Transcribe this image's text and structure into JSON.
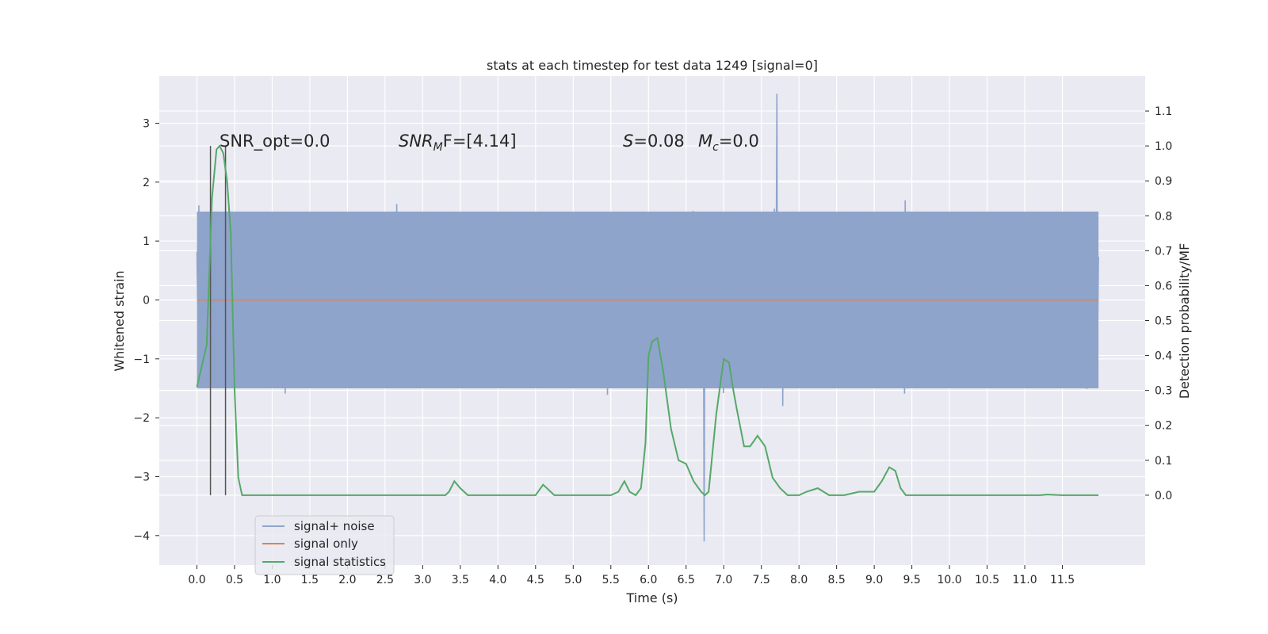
{
  "chart_data": {
    "type": "line",
    "title": "stats at each timestep for test data 1249 [signal=0]",
    "xlabel": "Time (s)",
    "ylabel": "Whitened strain",
    "ylabel_right": "Detection probability/MF",
    "xlim": [
      -0.5,
      12.6
    ],
    "ylim": [
      -4.5,
      3.8
    ],
    "ylim_right": [
      -0.2,
      1.2
    ],
    "x_ticks": [
      "0.0",
      "0.5",
      "1.0",
      "1.5",
      "2.0",
      "2.5",
      "3.0",
      "3.5",
      "4.0",
      "4.5",
      "5.0",
      "5.5",
      "6.0",
      "6.5",
      "7.0",
      "7.5",
      "8.0",
      "8.5",
      "9.0",
      "9.5",
      "10.0",
      "10.5",
      "11.0",
      "11.5"
    ],
    "y_ticks": [
      "3",
      "2",
      "1",
      "0",
      "−1",
      "−2",
      "−3",
      "−4"
    ],
    "y_ticks_right": [
      "1.1",
      "1.0",
      "0.9",
      "0.8",
      "0.7",
      "0.6",
      "0.5",
      "0.4",
      "0.3",
      "0.2",
      "0.1",
      "0.0"
    ],
    "grid": true,
    "annotations": {
      "snr_opt": "SNR_opt=0.0",
      "snr_mf_sym": "SNR",
      "snr_mf_sub": "M",
      "snr_mf_rest": "F=[4.14]",
      "s_sym": "S",
      "s_rest": "=0.08",
      "mc_sym": "M",
      "mc_sub": "c",
      "mc_rest": "=0.0"
    },
    "vlines_x": [
      0.18,
      0.38
    ],
    "noise": {
      "x_range": [
        0.0,
        11.98
      ],
      "band": [
        -1.5,
        1.5
      ],
      "extreme_high": 3.5,
      "extreme_low": -4.1
    },
    "series": [
      {
        "name": "signal+ noise",
        "color": "#8fa4cb",
        "axis": "left"
      },
      {
        "name": "signal only",
        "color": "#dd8452",
        "axis": "left",
        "x": [
          0.0,
          11.98
        ],
        "y": [
          0.0,
          0.0
        ]
      },
      {
        "name": "signal statistics",
        "color": "#55a868",
        "axis": "right",
        "x": [
          0.0,
          0.13,
          0.2,
          0.26,
          0.3,
          0.35,
          0.4,
          0.45,
          0.5,
          0.55,
          0.6,
          3.3,
          3.35,
          3.42,
          3.5,
          3.6,
          3.8,
          4.5,
          4.6,
          4.65,
          4.75,
          5.0,
          5.5,
          5.6,
          5.68,
          5.75,
          5.83,
          5.9,
          5.96,
          6.0,
          6.05,
          6.12,
          6.2,
          6.3,
          6.4,
          6.5,
          6.6,
          6.7,
          6.75,
          6.8,
          6.9,
          7.0,
          7.07,
          7.12,
          7.17,
          7.27,
          7.35,
          7.45,
          7.55,
          7.65,
          7.75,
          7.85,
          8.0,
          8.1,
          8.25,
          8.4,
          8.6,
          8.8,
          9.0,
          9.1,
          9.2,
          9.28,
          9.35,
          9.42,
          9.5,
          9.6,
          9.8,
          11.2,
          11.3,
          11.5,
          11.7,
          11.98
        ],
        "y": [
          0.31,
          0.43,
          0.85,
          0.99,
          1.0,
          0.98,
          0.9,
          0.75,
          0.3,
          0.05,
          0.0,
          0.0,
          0.01,
          0.04,
          0.02,
          0.0,
          0.0,
          0.0,
          0.03,
          0.02,
          0.0,
          0.0,
          0.0,
          0.01,
          0.04,
          0.01,
          0.0,
          0.02,
          0.15,
          0.4,
          0.44,
          0.45,
          0.35,
          0.19,
          0.1,
          0.09,
          0.04,
          0.01,
          0.0,
          0.01,
          0.23,
          0.39,
          0.38,
          0.31,
          0.25,
          0.14,
          0.14,
          0.17,
          0.14,
          0.05,
          0.02,
          0.0,
          0.0,
          0.01,
          0.02,
          0.0,
          0.0,
          0.01,
          0.01,
          0.04,
          0.08,
          0.07,
          0.02,
          0.0,
          0.0,
          0.0,
          0.0,
          0.0,
          0.002,
          0.0,
          0.0,
          0.0
        ]
      }
    ],
    "legend_position": "lower-left"
  }
}
